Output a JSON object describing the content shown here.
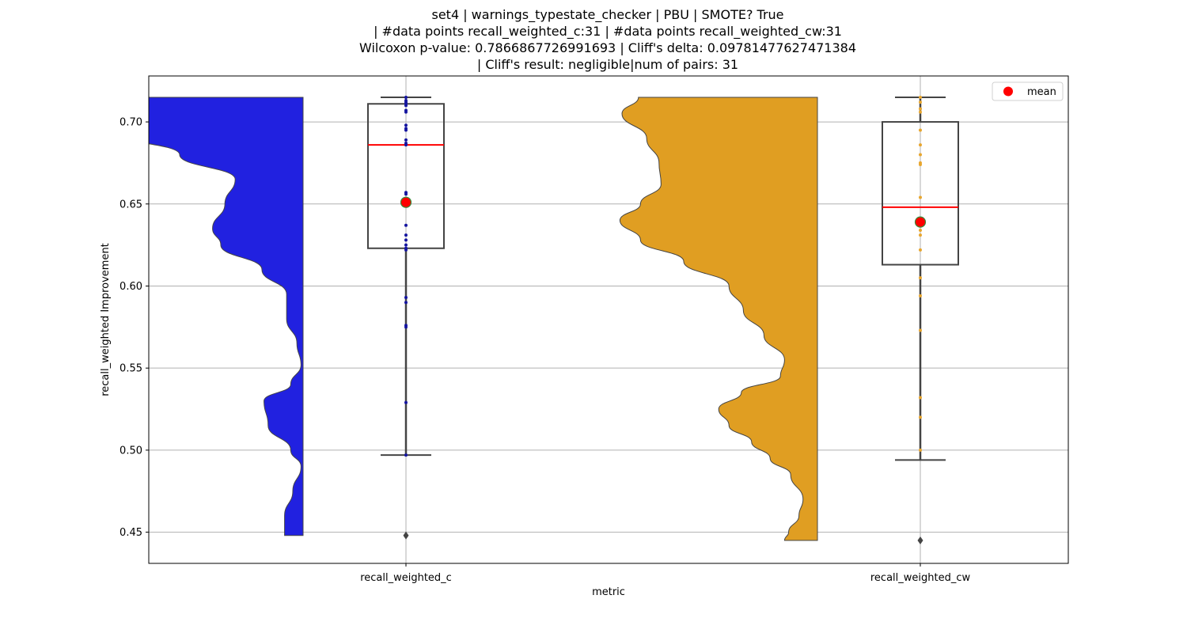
{
  "chart_data": {
    "type": "violin+box+strip",
    "title_lines": [
      "set4 | warnings_typestate_checker | PBU | SMOTE? True",
      "| #data points recall_weighted_c:31 | #data points recall_weighted_cw:31",
      "Wilcoxon p-value: 0.7866867726991693 | Cliff's delta: 0.09781477627471384",
      "| Cliff's result: negligible|num of pairs: 31"
    ],
    "xlabel": "metric",
    "ylabel": "recall_weighted Improvement",
    "categories": [
      "recall_weighted_c",
      "recall_weighted_cw"
    ],
    "ylim": [
      0.431,
      0.728
    ],
    "yticks": [
      0.45,
      0.5,
      0.55,
      0.6,
      0.65,
      0.7
    ],
    "ytick_labels": [
      "0.45",
      "0.50",
      "0.55",
      "0.60",
      "0.65",
      "0.70"
    ],
    "grid": true,
    "legend": {
      "placement": "top-right",
      "entries": [
        {
          "label": "mean",
          "color": "#ff0000"
        }
      ]
    },
    "series": [
      {
        "category": "recall_weighted_c",
        "violin_color": "#2121e0",
        "violin_side": "left",
        "violin_range": [
          0.448,
          0.715
        ],
        "violin_density": [
          [
            0.715,
            1.0
          ],
          [
            0.695,
            0.98
          ],
          [
            0.68,
            0.6
          ],
          [
            0.665,
            0.33
          ],
          [
            0.65,
            0.38
          ],
          [
            0.635,
            0.44
          ],
          [
            0.625,
            0.4
          ],
          [
            0.61,
            0.2
          ],
          [
            0.595,
            0.08
          ],
          [
            0.58,
            0.08
          ],
          [
            0.565,
            0.03
          ],
          [
            0.552,
            0.01
          ],
          [
            0.54,
            0.06
          ],
          [
            0.53,
            0.19
          ],
          [
            0.515,
            0.17
          ],
          [
            0.5,
            0.06
          ],
          [
            0.49,
            0.01
          ],
          [
            0.475,
            0.05
          ],
          [
            0.46,
            0.09
          ],
          [
            0.448,
            0.09
          ]
        ],
        "box": {
          "whisker_low": 0.497,
          "q1": 0.623,
          "median": 0.686,
          "q3": 0.711,
          "whisker_high": 0.715
        },
        "mean": 0.651,
        "outliers": [
          0.448
        ],
        "points": [
          0.715,
          0.713,
          0.712,
          0.711,
          0.71,
          0.707,
          0.706,
          0.698,
          0.696,
          0.695,
          0.689,
          0.687,
          0.686,
          0.657,
          0.656,
          0.637,
          0.631,
          0.628,
          0.625,
          0.623,
          0.622,
          0.593,
          0.59,
          0.576,
          0.575,
          0.529,
          0.497,
          0.448
        ],
        "point_color": "#1515a0"
      },
      {
        "category": "recall_weighted_cw",
        "violin_color": "#e09e22",
        "violin_side": "left",
        "violin_range": [
          0.445,
          0.715
        ],
        "violin_density": [
          [
            0.715,
            0.87
          ],
          [
            0.705,
            0.95
          ],
          [
            0.69,
            0.83
          ],
          [
            0.675,
            0.77
          ],
          [
            0.662,
            0.76
          ],
          [
            0.65,
            0.86
          ],
          [
            0.64,
            0.96
          ],
          [
            0.628,
            0.86
          ],
          [
            0.615,
            0.65
          ],
          [
            0.6,
            0.43
          ],
          [
            0.585,
            0.36
          ],
          [
            0.57,
            0.26
          ],
          [
            0.555,
            0.16
          ],
          [
            0.545,
            0.18
          ],
          [
            0.535,
            0.37
          ],
          [
            0.525,
            0.48
          ],
          [
            0.515,
            0.43
          ],
          [
            0.505,
            0.32
          ],
          [
            0.495,
            0.23
          ],
          [
            0.485,
            0.13
          ],
          [
            0.47,
            0.07
          ],
          [
            0.46,
            0.09
          ],
          [
            0.45,
            0.14
          ],
          [
            0.445,
            0.16
          ]
        ],
        "box": {
          "whisker_low": 0.494,
          "q1": 0.613,
          "median": 0.648,
          "q3": 0.7,
          "whisker_high": 0.715
        },
        "mean": 0.639,
        "outliers": [
          0.445
        ],
        "points": [
          0.715,
          0.712,
          0.708,
          0.706,
          0.695,
          0.686,
          0.68,
          0.675,
          0.674,
          0.654,
          0.64,
          0.638,
          0.634,
          0.631,
          0.622,
          0.605,
          0.594,
          0.573,
          0.532,
          0.52,
          0.5,
          0.445
        ],
        "point_color": "#e8a62e"
      }
    ],
    "colors": {
      "median": "#ff0000",
      "mean_fill": "#ff0000",
      "mean_edge": "#3a8a3a",
      "box_edge": "#444444",
      "grid": "#b0b0b0"
    }
  }
}
